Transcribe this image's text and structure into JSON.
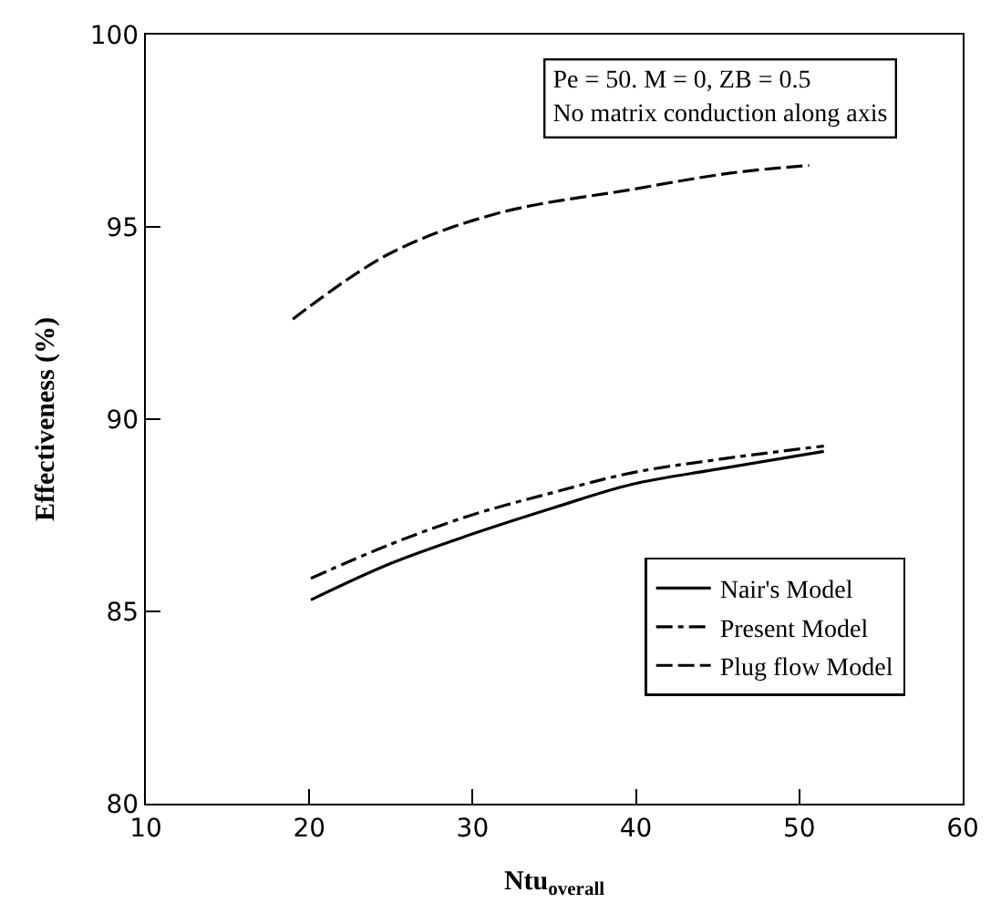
{
  "chart_data": {
    "type": "line",
    "xlabel": "Ntu$_{overall}$",
    "ylabel": "Effectiveness (%)",
    "xlim": [
      10,
      60
    ],
    "ylim": [
      80,
      100
    ],
    "xticks": [
      10,
      20,
      30,
      40,
      50,
      60
    ],
    "yticks": [
      80,
      85,
      90,
      95,
      100
    ],
    "legend": "bottom right",
    "marker": "none",
    "annotations": [
      "Pe = 50. M = 0, ZB = 0.5\nNo matrix conduction along axis"
    ],
    "series": [
      {
        "name": "Nair's Model",
        "color": "#000000",
        "line_style": "solid",
        "x": [
          20.1,
          25,
          29.9,
          35,
          39.7,
          45,
          51.5
        ],
        "values": [
          85.3,
          86.25,
          87.0,
          87.7,
          88.3,
          88.7,
          89.16
        ]
      },
      {
        "name": "Present Model",
        "color": "#000000",
        "line_style": "dashdot",
        "x": [
          20.1,
          25,
          29.9,
          35,
          39.7,
          45,
          51.5
        ],
        "values": [
          85.86,
          86.75,
          87.5,
          88.1,
          88.6,
          88.95,
          89.3
        ]
      },
      {
        "name": "Plug flow Model",
        "color": "#000000",
        "line_style": "dashed",
        "x": [
          19.0,
          24.9,
          31.5,
          39.7,
          45.8,
          50.6
        ],
        "values": [
          92.6,
          94.3,
          95.35,
          95.97,
          96.4,
          96.6
        ]
      }
    ]
  }
}
